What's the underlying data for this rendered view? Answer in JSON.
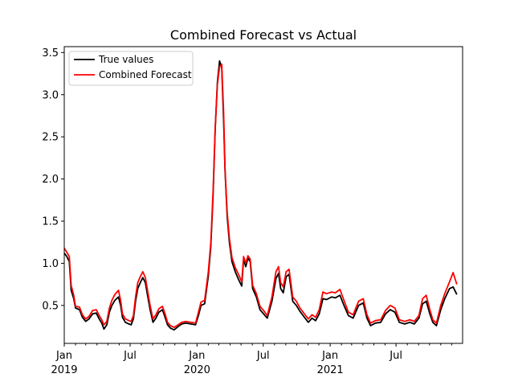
{
  "chart_data": {
    "type": "line",
    "title": "Combined Forecast vs Actual",
    "xlabel": "",
    "ylabel": "",
    "x_range": [
      "2019-01-01",
      "2021-12-31"
    ],
    "ylim": [
      0.05,
      3.57
    ],
    "grid": false,
    "legend_position": "top-left",
    "y_ticks": [
      {
        "value": 0.5,
        "label": "0.5"
      },
      {
        "value": 1.0,
        "label": "1.0"
      },
      {
        "value": 1.5,
        "label": "1.5"
      },
      {
        "value": 2.0,
        "label": "2.0"
      },
      {
        "value": 2.5,
        "label": "2.5"
      },
      {
        "value": 3.0,
        "label": "3.0"
      },
      {
        "value": 3.5,
        "label": "3.5"
      }
    ],
    "x_major_ticks": [
      {
        "date": "2019-01-01",
        "label": "Jan",
        "label2": "2019"
      },
      {
        "date": "2019-07-01",
        "label": "Jul",
        "label2": ""
      },
      {
        "date": "2020-01-01",
        "label": "Jan",
        "label2": "2020"
      },
      {
        "date": "2020-07-01",
        "label": "Jul",
        "label2": ""
      },
      {
        "date": "2021-01-01",
        "label": "Jan",
        "label2": "2021"
      },
      {
        "date": "2021-07-01",
        "label": "Jul",
        "label2": ""
      }
    ],
    "x_minor_ticks": [
      "2019-02-01",
      "2019-03-01",
      "2019-04-01",
      "2019-05-01",
      "2019-06-01",
      "2019-08-01",
      "2019-09-01",
      "2019-10-01",
      "2019-11-01",
      "2019-12-01",
      "2020-02-01",
      "2020-03-01",
      "2020-04-01",
      "2020-05-01",
      "2020-06-01",
      "2020-08-01",
      "2020-09-01",
      "2020-10-01",
      "2020-11-01",
      "2020-12-01",
      "2021-02-01",
      "2021-03-01",
      "2021-04-01",
      "2021-05-01",
      "2021-06-01",
      "2021-08-01",
      "2021-09-01",
      "2021-10-01",
      "2021-11-01",
      "2021-12-01"
    ],
    "series": [
      {
        "name": "True values",
        "color": "#000000",
        "points": [
          [
            "2019-01-01",
            1.12
          ],
          [
            "2019-01-08",
            1.08
          ],
          [
            "2019-01-15",
            1.02
          ],
          [
            "2019-01-20",
            0.68
          ],
          [
            "2019-01-27",
            0.58
          ],
          [
            "2019-02-01",
            0.47
          ],
          [
            "2019-02-12",
            0.45
          ],
          [
            "2019-02-20",
            0.36
          ],
          [
            "2019-03-01",
            0.31
          ],
          [
            "2019-03-10",
            0.34
          ],
          [
            "2019-03-20",
            0.4
          ],
          [
            "2019-03-30",
            0.41
          ],
          [
            "2019-04-07",
            0.34
          ],
          [
            "2019-04-14",
            0.29
          ],
          [
            "2019-04-20",
            0.22
          ],
          [
            "2019-04-28",
            0.27
          ],
          [
            "2019-05-05",
            0.42
          ],
          [
            "2019-05-12",
            0.5
          ],
          [
            "2019-05-20",
            0.56
          ],
          [
            "2019-05-30",
            0.6
          ],
          [
            "2019-06-05",
            0.5
          ],
          [
            "2019-06-10",
            0.36
          ],
          [
            "2019-06-18",
            0.3
          ],
          [
            "2019-06-28",
            0.28
          ],
          [
            "2019-07-04",
            0.27
          ],
          [
            "2019-07-10",
            0.34
          ],
          [
            "2019-07-16",
            0.55
          ],
          [
            "2019-07-22",
            0.7
          ],
          [
            "2019-07-30",
            0.78
          ],
          [
            "2019-08-05",
            0.83
          ],
          [
            "2019-08-12",
            0.77
          ],
          [
            "2019-08-18",
            0.62
          ],
          [
            "2019-08-25",
            0.45
          ],
          [
            "2019-09-02",
            0.3
          ],
          [
            "2019-09-10",
            0.35
          ],
          [
            "2019-09-18",
            0.42
          ],
          [
            "2019-09-28",
            0.45
          ],
          [
            "2019-10-05",
            0.36
          ],
          [
            "2019-10-12",
            0.27
          ],
          [
            "2019-10-20",
            0.23
          ],
          [
            "2019-10-30",
            0.21
          ],
          [
            "2019-11-10",
            0.25
          ],
          [
            "2019-11-20",
            0.28
          ],
          [
            "2019-12-01",
            0.29
          ],
          [
            "2019-12-15",
            0.28
          ],
          [
            "2019-12-28",
            0.27
          ],
          [
            "2020-01-05",
            0.38
          ],
          [
            "2020-01-12",
            0.5
          ],
          [
            "2020-01-22",
            0.52
          ],
          [
            "2020-02-01",
            0.85
          ],
          [
            "2020-02-08",
            1.2
          ],
          [
            "2020-02-14",
            1.8
          ],
          [
            "2020-02-20",
            2.6
          ],
          [
            "2020-02-26",
            3.15
          ],
          [
            "2020-03-03",
            3.4
          ],
          [
            "2020-03-09",
            3.32
          ],
          [
            "2020-03-14",
            2.7
          ],
          [
            "2020-03-18",
            2.1
          ],
          [
            "2020-03-24",
            1.55
          ],
          [
            "2020-03-30",
            1.25
          ],
          [
            "2020-04-06",
            1.02
          ],
          [
            "2020-04-15",
            0.9
          ],
          [
            "2020-04-25",
            0.8
          ],
          [
            "2020-05-03",
            0.73
          ],
          [
            "2020-05-08",
            1.05
          ],
          [
            "2020-05-14",
            0.96
          ],
          [
            "2020-05-20",
            1.06
          ],
          [
            "2020-05-26",
            1.02
          ],
          [
            "2020-06-02",
            0.7
          ],
          [
            "2020-06-12",
            0.6
          ],
          [
            "2020-06-22",
            0.45
          ],
          [
            "2020-07-02",
            0.4
          ],
          [
            "2020-07-12",
            0.35
          ],
          [
            "2020-07-25",
            0.55
          ],
          [
            "2020-08-05",
            0.82
          ],
          [
            "2020-08-12",
            0.88
          ],
          [
            "2020-08-18",
            0.7
          ],
          [
            "2020-08-25",
            0.65
          ],
          [
            "2020-09-02",
            0.84
          ],
          [
            "2020-09-10",
            0.87
          ],
          [
            "2020-09-20",
            0.55
          ],
          [
            "2020-09-30",
            0.5
          ],
          [
            "2020-10-10",
            0.43
          ],
          [
            "2020-10-22",
            0.36
          ],
          [
            "2020-11-02",
            0.3
          ],
          [
            "2020-11-12",
            0.35
          ],
          [
            "2020-11-22",
            0.32
          ],
          [
            "2020-12-02",
            0.4
          ],
          [
            "2020-12-12",
            0.58
          ],
          [
            "2020-12-22",
            0.57
          ],
          [
            "2021-01-05",
            0.6
          ],
          [
            "2021-01-15",
            0.59
          ],
          [
            "2021-01-28",
            0.62
          ],
          [
            "2021-02-08",
            0.5
          ],
          [
            "2021-02-20",
            0.38
          ],
          [
            "2021-03-05",
            0.35
          ],
          [
            "2021-03-20",
            0.5
          ],
          [
            "2021-04-02",
            0.53
          ],
          [
            "2021-04-12",
            0.35
          ],
          [
            "2021-04-22",
            0.26
          ],
          [
            "2021-05-05",
            0.29
          ],
          [
            "2021-05-20",
            0.3
          ],
          [
            "2021-06-02",
            0.4
          ],
          [
            "2021-06-15",
            0.45
          ],
          [
            "2021-06-28",
            0.42
          ],
          [
            "2021-07-10",
            0.3
          ],
          [
            "2021-07-25",
            0.28
          ],
          [
            "2021-08-08",
            0.3
          ],
          [
            "2021-08-20",
            0.28
          ],
          [
            "2021-09-02",
            0.35
          ],
          [
            "2021-09-12",
            0.52
          ],
          [
            "2021-09-22",
            0.55
          ],
          [
            "2021-10-02",
            0.4
          ],
          [
            "2021-10-10",
            0.3
          ],
          [
            "2021-10-20",
            0.26
          ],
          [
            "2021-11-01",
            0.45
          ],
          [
            "2021-11-12",
            0.58
          ],
          [
            "2021-11-25",
            0.7
          ],
          [
            "2021-12-05",
            0.72
          ],
          [
            "2021-12-15",
            0.63
          ]
        ]
      },
      {
        "name": "Combined Forecast",
        "color": "#ff0000",
        "points": [
          [
            "2019-01-01",
            1.18
          ],
          [
            "2019-01-08",
            1.13
          ],
          [
            "2019-01-15",
            1.08
          ],
          [
            "2019-01-20",
            0.74
          ],
          [
            "2019-01-27",
            0.62
          ],
          [
            "2019-02-01",
            0.49
          ],
          [
            "2019-02-12",
            0.48
          ],
          [
            "2019-02-20",
            0.39
          ],
          [
            "2019-03-01",
            0.34
          ],
          [
            "2019-03-10",
            0.37
          ],
          [
            "2019-03-20",
            0.44
          ],
          [
            "2019-03-30",
            0.45
          ],
          [
            "2019-04-07",
            0.38
          ],
          [
            "2019-04-14",
            0.33
          ],
          [
            "2019-04-20",
            0.27
          ],
          [
            "2019-04-28",
            0.31
          ],
          [
            "2019-05-05",
            0.47
          ],
          [
            "2019-05-12",
            0.56
          ],
          [
            "2019-05-20",
            0.63
          ],
          [
            "2019-05-30",
            0.68
          ],
          [
            "2019-06-05",
            0.56
          ],
          [
            "2019-06-10",
            0.4
          ],
          [
            "2019-06-18",
            0.34
          ],
          [
            "2019-06-28",
            0.32
          ],
          [
            "2019-07-04",
            0.31
          ],
          [
            "2019-07-10",
            0.38
          ],
          [
            "2019-07-16",
            0.6
          ],
          [
            "2019-07-22",
            0.77
          ],
          [
            "2019-07-30",
            0.85
          ],
          [
            "2019-08-05",
            0.9
          ],
          [
            "2019-08-12",
            0.83
          ],
          [
            "2019-08-18",
            0.68
          ],
          [
            "2019-08-25",
            0.5
          ],
          [
            "2019-09-02",
            0.34
          ],
          [
            "2019-09-10",
            0.39
          ],
          [
            "2019-09-18",
            0.46
          ],
          [
            "2019-09-28",
            0.49
          ],
          [
            "2019-10-05",
            0.4
          ],
          [
            "2019-10-12",
            0.3
          ],
          [
            "2019-10-20",
            0.26
          ],
          [
            "2019-10-30",
            0.24
          ],
          [
            "2019-11-10",
            0.27
          ],
          [
            "2019-11-20",
            0.3
          ],
          [
            "2019-12-01",
            0.31
          ],
          [
            "2019-12-15",
            0.3
          ],
          [
            "2019-12-28",
            0.29
          ],
          [
            "2020-01-05",
            0.42
          ],
          [
            "2020-01-12",
            0.54
          ],
          [
            "2020-01-22",
            0.56
          ],
          [
            "2020-02-01",
            0.9
          ],
          [
            "2020-02-08",
            1.25
          ],
          [
            "2020-02-14",
            1.85
          ],
          [
            "2020-02-20",
            2.62
          ],
          [
            "2020-02-26",
            3.12
          ],
          [
            "2020-03-03",
            3.33
          ],
          [
            "2020-03-09",
            3.36
          ],
          [
            "2020-03-14",
            2.8
          ],
          [
            "2020-03-18",
            2.12
          ],
          [
            "2020-03-24",
            1.6
          ],
          [
            "2020-03-30",
            1.3
          ],
          [
            "2020-04-06",
            1.07
          ],
          [
            "2020-04-15",
            0.95
          ],
          [
            "2020-04-25",
            0.86
          ],
          [
            "2020-05-03",
            0.78
          ],
          [
            "2020-05-08",
            1.08
          ],
          [
            "2020-05-14",
            1.0
          ],
          [
            "2020-05-20",
            1.09
          ],
          [
            "2020-05-26",
            1.05
          ],
          [
            "2020-06-02",
            0.74
          ],
          [
            "2020-06-12",
            0.64
          ],
          [
            "2020-06-22",
            0.49
          ],
          [
            "2020-07-02",
            0.44
          ],
          [
            "2020-07-12",
            0.38
          ],
          [
            "2020-07-25",
            0.6
          ],
          [
            "2020-08-05",
            0.9
          ],
          [
            "2020-08-12",
            0.96
          ],
          [
            "2020-08-18",
            0.77
          ],
          [
            "2020-08-25",
            0.72
          ],
          [
            "2020-09-02",
            0.9
          ],
          [
            "2020-09-10",
            0.93
          ],
          [
            "2020-09-20",
            0.6
          ],
          [
            "2020-09-30",
            0.55
          ],
          [
            "2020-10-10",
            0.47
          ],
          [
            "2020-10-22",
            0.4
          ],
          [
            "2020-11-02",
            0.34
          ],
          [
            "2020-11-12",
            0.39
          ],
          [
            "2020-11-22",
            0.36
          ],
          [
            "2020-12-02",
            0.45
          ],
          [
            "2020-12-12",
            0.66
          ],
          [
            "2020-12-22",
            0.64
          ],
          [
            "2021-01-05",
            0.66
          ],
          [
            "2021-01-15",
            0.65
          ],
          [
            "2021-01-28",
            0.69
          ],
          [
            "2021-02-08",
            0.56
          ],
          [
            "2021-02-20",
            0.42
          ],
          [
            "2021-03-05",
            0.39
          ],
          [
            "2021-03-20",
            0.55
          ],
          [
            "2021-04-02",
            0.58
          ],
          [
            "2021-04-12",
            0.39
          ],
          [
            "2021-04-22",
            0.29
          ],
          [
            "2021-05-05",
            0.32
          ],
          [
            "2021-05-20",
            0.33
          ],
          [
            "2021-06-02",
            0.44
          ],
          [
            "2021-06-15",
            0.5
          ],
          [
            "2021-06-28",
            0.47
          ],
          [
            "2021-07-10",
            0.33
          ],
          [
            "2021-07-25",
            0.31
          ],
          [
            "2021-08-08",
            0.33
          ],
          [
            "2021-08-20",
            0.31
          ],
          [
            "2021-09-02",
            0.38
          ],
          [
            "2021-09-12",
            0.58
          ],
          [
            "2021-09-22",
            0.62
          ],
          [
            "2021-10-02",
            0.45
          ],
          [
            "2021-10-10",
            0.33
          ],
          [
            "2021-10-20",
            0.29
          ],
          [
            "2021-11-01",
            0.5
          ],
          [
            "2021-11-12",
            0.64
          ],
          [
            "2021-11-25",
            0.78
          ],
          [
            "2021-12-05",
            0.89
          ],
          [
            "2021-12-15",
            0.75
          ]
        ]
      }
    ]
  }
}
